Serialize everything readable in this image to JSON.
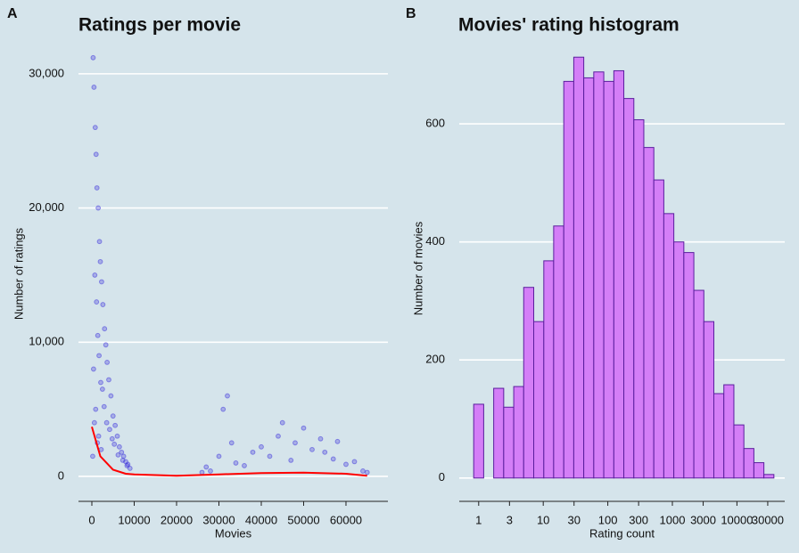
{
  "chart_data": [
    {
      "type": "scatter",
      "tag": "A",
      "title": "Ratings per movie",
      "x_label": "Movies",
      "y_label": "Number of ratings",
      "xlim": [
        -3160,
        69900
      ],
      "ylim": [
        -1660,
        31850
      ],
      "xticks": [
        0,
        10000,
        20000,
        30000,
        40000,
        50000,
        60000
      ],
      "yticks": [
        0,
        {
          "value": 10000,
          "label": "10,000"
        },
        {
          "value": 20000,
          "label": "20,000"
        },
        {
          "value": 30000,
          "label": "30,000"
        }
      ],
      "grid": true,
      "points": {
        "color": "#3a2fdb",
        "x": [
          300,
          500,
          800,
          1000,
          1200,
          1500,
          1800,
          2000,
          2300,
          2600,
          3000,
          3300,
          3600,
          4000,
          4500,
          5000,
          5500,
          6000,
          6500,
          7000,
          7500,
          8000,
          8500,
          9000,
          400,
          700,
          1100,
          1400,
          1700,
          2100,
          2500,
          2900,
          3500,
          4200,
          4800,
          5300,
          6200,
          7300,
          8300,
          200,
          600,
          900,
          1300,
          1600,
          2200,
          26000,
          27000,
          28000,
          30000,
          31000,
          32000,
          33000,
          34000,
          36000,
          38000,
          40000,
          42000,
          44000,
          45000,
          47000,
          48000,
          50000,
          52000,
          54000,
          55000,
          57000,
          58000,
          60000,
          62000,
          64000,
          65000
        ],
        "y": [
          31200,
          29000,
          26000,
          24000,
          21500,
          20000,
          17500,
          16000,
          14500,
          12800,
          11000,
          9800,
          8500,
          7200,
          6000,
          4500,
          3800,
          3000,
          2200,
          1800,
          1500,
          1100,
          900,
          600,
          8000,
          15000,
          13000,
          10500,
          9000,
          7000,
          6500,
          5200,
          4000,
          3500,
          2800,
          2400,
          1600,
          1200,
          800,
          1500,
          4000,
          5000,
          2500,
          3000,
          2000,
          300,
          700,
          400,
          1500,
          5000,
          6000,
          2500,
          1000,
          800,
          1800,
          2200,
          1500,
          3000,
          4000,
          1200,
          2500,
          3600,
          2000,
          2800,
          1800,
          1300,
          2600,
          900,
          1100,
          400,
          300
        ]
      },
      "smooth": {
        "color": "#ff0000",
        "x": [
          0,
          2000,
          5000,
          8000,
          10000,
          20000,
          30000,
          40000,
          50000,
          60000,
          65000
        ],
        "y": [
          3700,
          1500,
          500,
          200,
          150,
          50,
          150,
          250,
          280,
          200,
          50
        ]
      }
    },
    {
      "type": "histogram",
      "tag": "B",
      "title": "Movies' rating histogram",
      "x_label": "Rating count",
      "y_label": "Number of movies",
      "xlog": true,
      "xlim": [
        0.5,
        55000
      ],
      "ylim": [
        -35,
        745
      ],
      "xticks": [
        1,
        3,
        10,
        30,
        100,
        300,
        1000,
        3000,
        10000,
        30000
      ],
      "yticks": [
        0,
        200,
        400,
        600
      ],
      "grid": true,
      "color": "#d47ef7",
      "edge_color": "#5a1e9e",
      "bins": [
        0.837,
        1.195,
        1.708,
        2.44,
        3.49,
        4.98,
        7.12,
        10.2,
        14.5,
        20.8,
        29.7,
        42.4,
        60.6,
        86.6,
        124,
        177,
        253,
        361,
        516,
        737,
        1053,
        1505,
        2150,
        3072,
        4389,
        6271,
        8965,
        12808,
        18302,
        26152,
        37359
      ],
      "values": [
        125,
        0,
        152,
        120,
        155,
        323,
        265,
        368,
        427,
        672,
        713,
        678,
        688,
        672,
        690,
        643,
        607,
        560,
        505,
        448,
        400,
        382,
        318,
        265,
        143,
        158,
        90,
        50,
        26,
        6
      ]
    }
  ]
}
